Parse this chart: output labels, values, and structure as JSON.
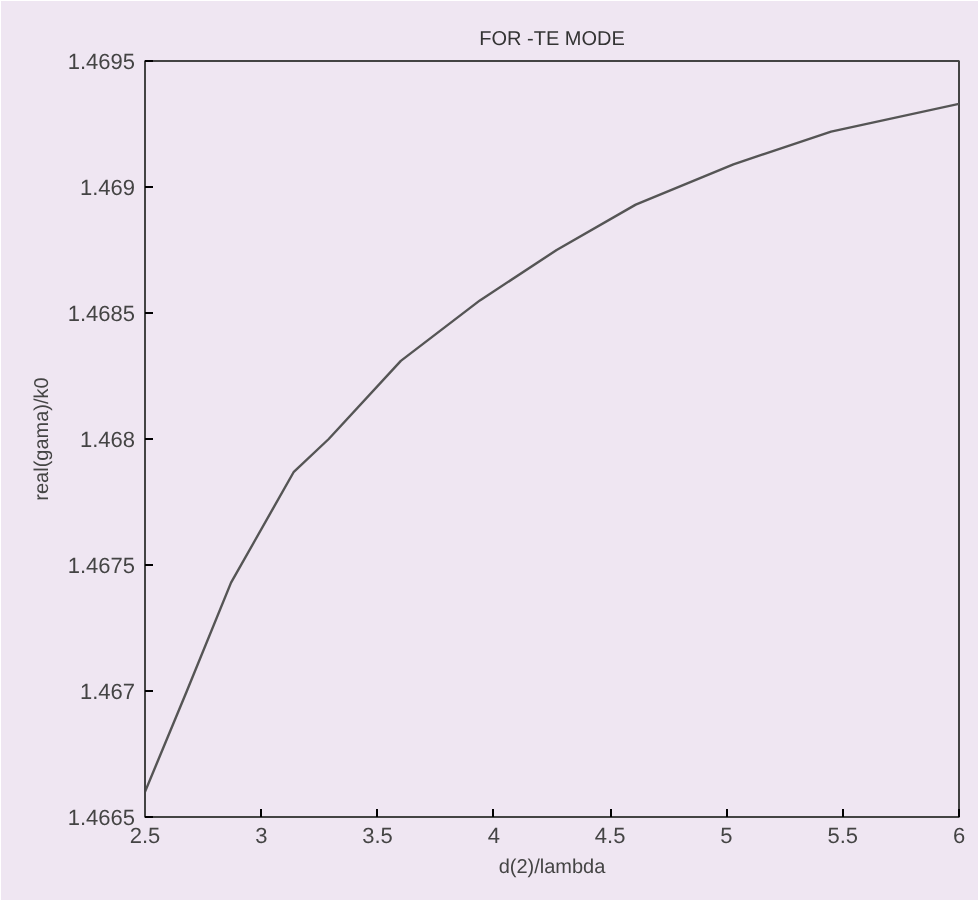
{
  "chart_data": {
    "type": "line",
    "title": "FOR -TE MODE",
    "xlabel": "d(2)/lambda",
    "ylabel": "real(gama)/k0",
    "x": [
      2.5,
      2.68,
      2.87,
      3.14,
      3.29,
      3.6,
      3.94,
      4.27,
      4.61,
      5.03,
      5.45,
      6.0
    ],
    "series": [
      {
        "color": "#555555",
        "values": [
          1.4666,
          1.467,
          1.46743,
          1.46787,
          1.468,
          1.46831,
          1.46855,
          1.46875,
          1.46893,
          1.46909,
          1.46922,
          1.46933
        ]
      }
    ],
    "xlim": [
      2.5,
      6
    ],
    "ylim": [
      1.4665,
      1.4695
    ],
    "xticks": [
      {
        "value": 2.5,
        "label": "2.5"
      },
      {
        "value": 3,
        "label": "3"
      },
      {
        "value": 3.5,
        "label": "3.5"
      },
      {
        "value": 4,
        "label": "4"
      },
      {
        "value": 4.5,
        "label": "4.5"
      },
      {
        "value": 5,
        "label": "5"
      },
      {
        "value": 5.5,
        "label": "5.5"
      },
      {
        "value": 6,
        "label": "6"
      }
    ],
    "yticks": [
      {
        "value": 1.4665,
        "label": "1.4665"
      },
      {
        "value": 1.467,
        "label": "1.467"
      },
      {
        "value": 1.4675,
        "label": "1.4675"
      },
      {
        "value": 1.468,
        "label": "1.468"
      },
      {
        "value": 1.4685,
        "label": "1.4685"
      },
      {
        "value": 1.469,
        "label": "1.469"
      },
      {
        "value": 1.4695,
        "label": "1.4695"
      }
    ],
    "grid": false,
    "marker": "none",
    "line_style": "solid"
  }
}
